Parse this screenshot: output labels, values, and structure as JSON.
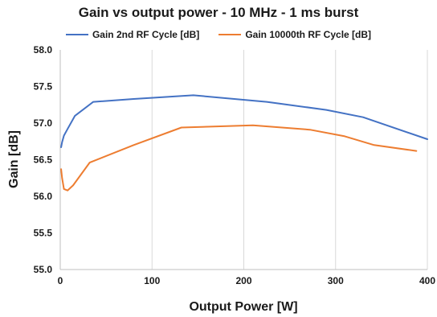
{
  "chart_data": {
    "type": "line",
    "title": "Gain vs output power - 10 MHz - 1 ms burst",
    "xlabel": "Output Power [W]",
    "ylabel": "Gain [dB]",
    "xlim": [
      0,
      400
    ],
    "ylim": [
      55.0,
      58.0
    ],
    "x_ticks": [
      "0",
      "100",
      "200",
      "300",
      "400"
    ],
    "y_ticks": [
      "55.0",
      "55.5",
      "56.0",
      "56.5",
      "57.0",
      "57.5",
      "58.0"
    ],
    "grid": "vertical",
    "legend_position": "top",
    "series": [
      {
        "name": "Gain 2nd RF Cycle [dB]",
        "color": "#4472C4",
        "x": [
          1,
          2,
          4,
          8,
          16,
          36,
          80,
          145,
          225,
          290,
          330,
          400
        ],
        "y": [
          56.67,
          56.74,
          56.83,
          56.92,
          57.1,
          57.29,
          57.33,
          57.38,
          57.29,
          57.18,
          57.08,
          56.78
        ]
      },
      {
        "name": "Gain 10000th RF Cycle [dB]",
        "color": "#ED7D31",
        "x": [
          1,
          2,
          4,
          8,
          14,
          32,
          80,
          132,
          210,
          272,
          310,
          342,
          388
        ],
        "y": [
          56.37,
          56.25,
          56.1,
          56.08,
          56.15,
          56.46,
          56.7,
          56.94,
          56.97,
          56.91,
          56.82,
          56.7,
          56.62
        ]
      }
    ]
  }
}
